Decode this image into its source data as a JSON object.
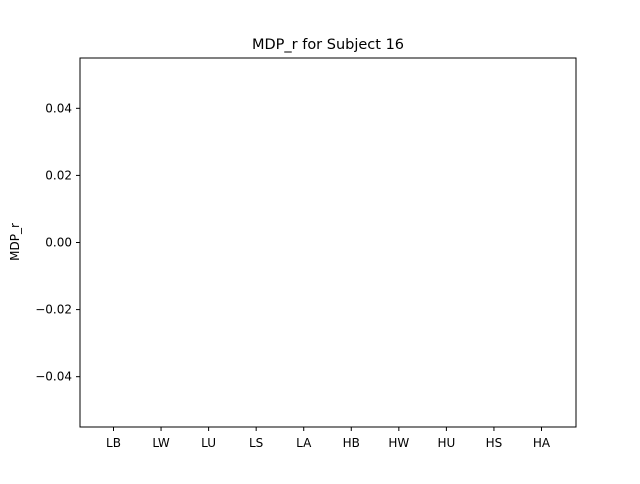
{
  "chart_data": {
    "type": "bar",
    "title": "MDP_r for Subject 16",
    "xlabel": "",
    "ylabel": "MDP_r",
    "categories": [
      "LB",
      "LW",
      "LU",
      "LS",
      "LA",
      "HB",
      "HW",
      "HU",
      "HS",
      "HA"
    ],
    "values": [
      0,
      0,
      0,
      0,
      0,
      0,
      0,
      0,
      0,
      0
    ],
    "ylim": [
      -0.055,
      0.055
    ],
    "yticks": [
      -0.04,
      -0.02,
      0.0,
      0.02,
      0.04
    ],
    "ytick_labels": [
      "−0.04",
      "−0.02",
      "0.00",
      "0.02",
      "0.04"
    ],
    "grid": false,
    "legend": "none",
    "colors": {
      "background": "#ffffff",
      "axes": "#000000",
      "bar": "#1f77b4"
    }
  }
}
